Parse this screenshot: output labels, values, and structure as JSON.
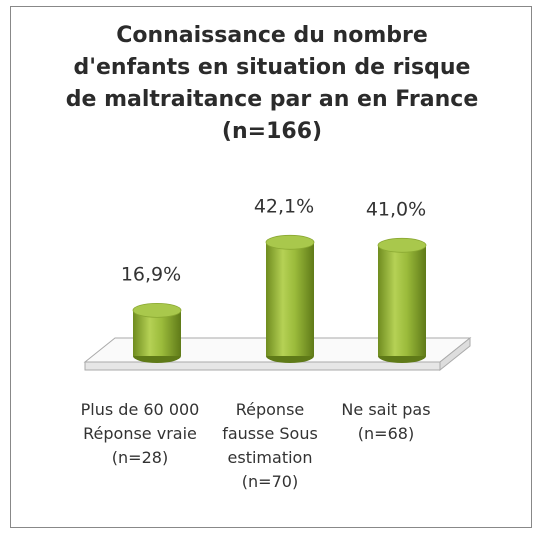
{
  "chart_data": {
    "type": "bar3d",
    "title": "Connaissance du nombre d'enfants en situation de risque de maltraitance par an en France (n=166)",
    "categories": [
      "Plus de 60 000 Réponse vraie (n=28)",
      "Réponse fausse Sous estimation (n=70)",
      "Ne sait pas (n=68)"
    ],
    "values": [
      16.9,
      42.1,
      41.0
    ],
    "value_labels": [
      "16,9%",
      "42,1%",
      "41,0%"
    ],
    "color": "#9bbb3b"
  }
}
